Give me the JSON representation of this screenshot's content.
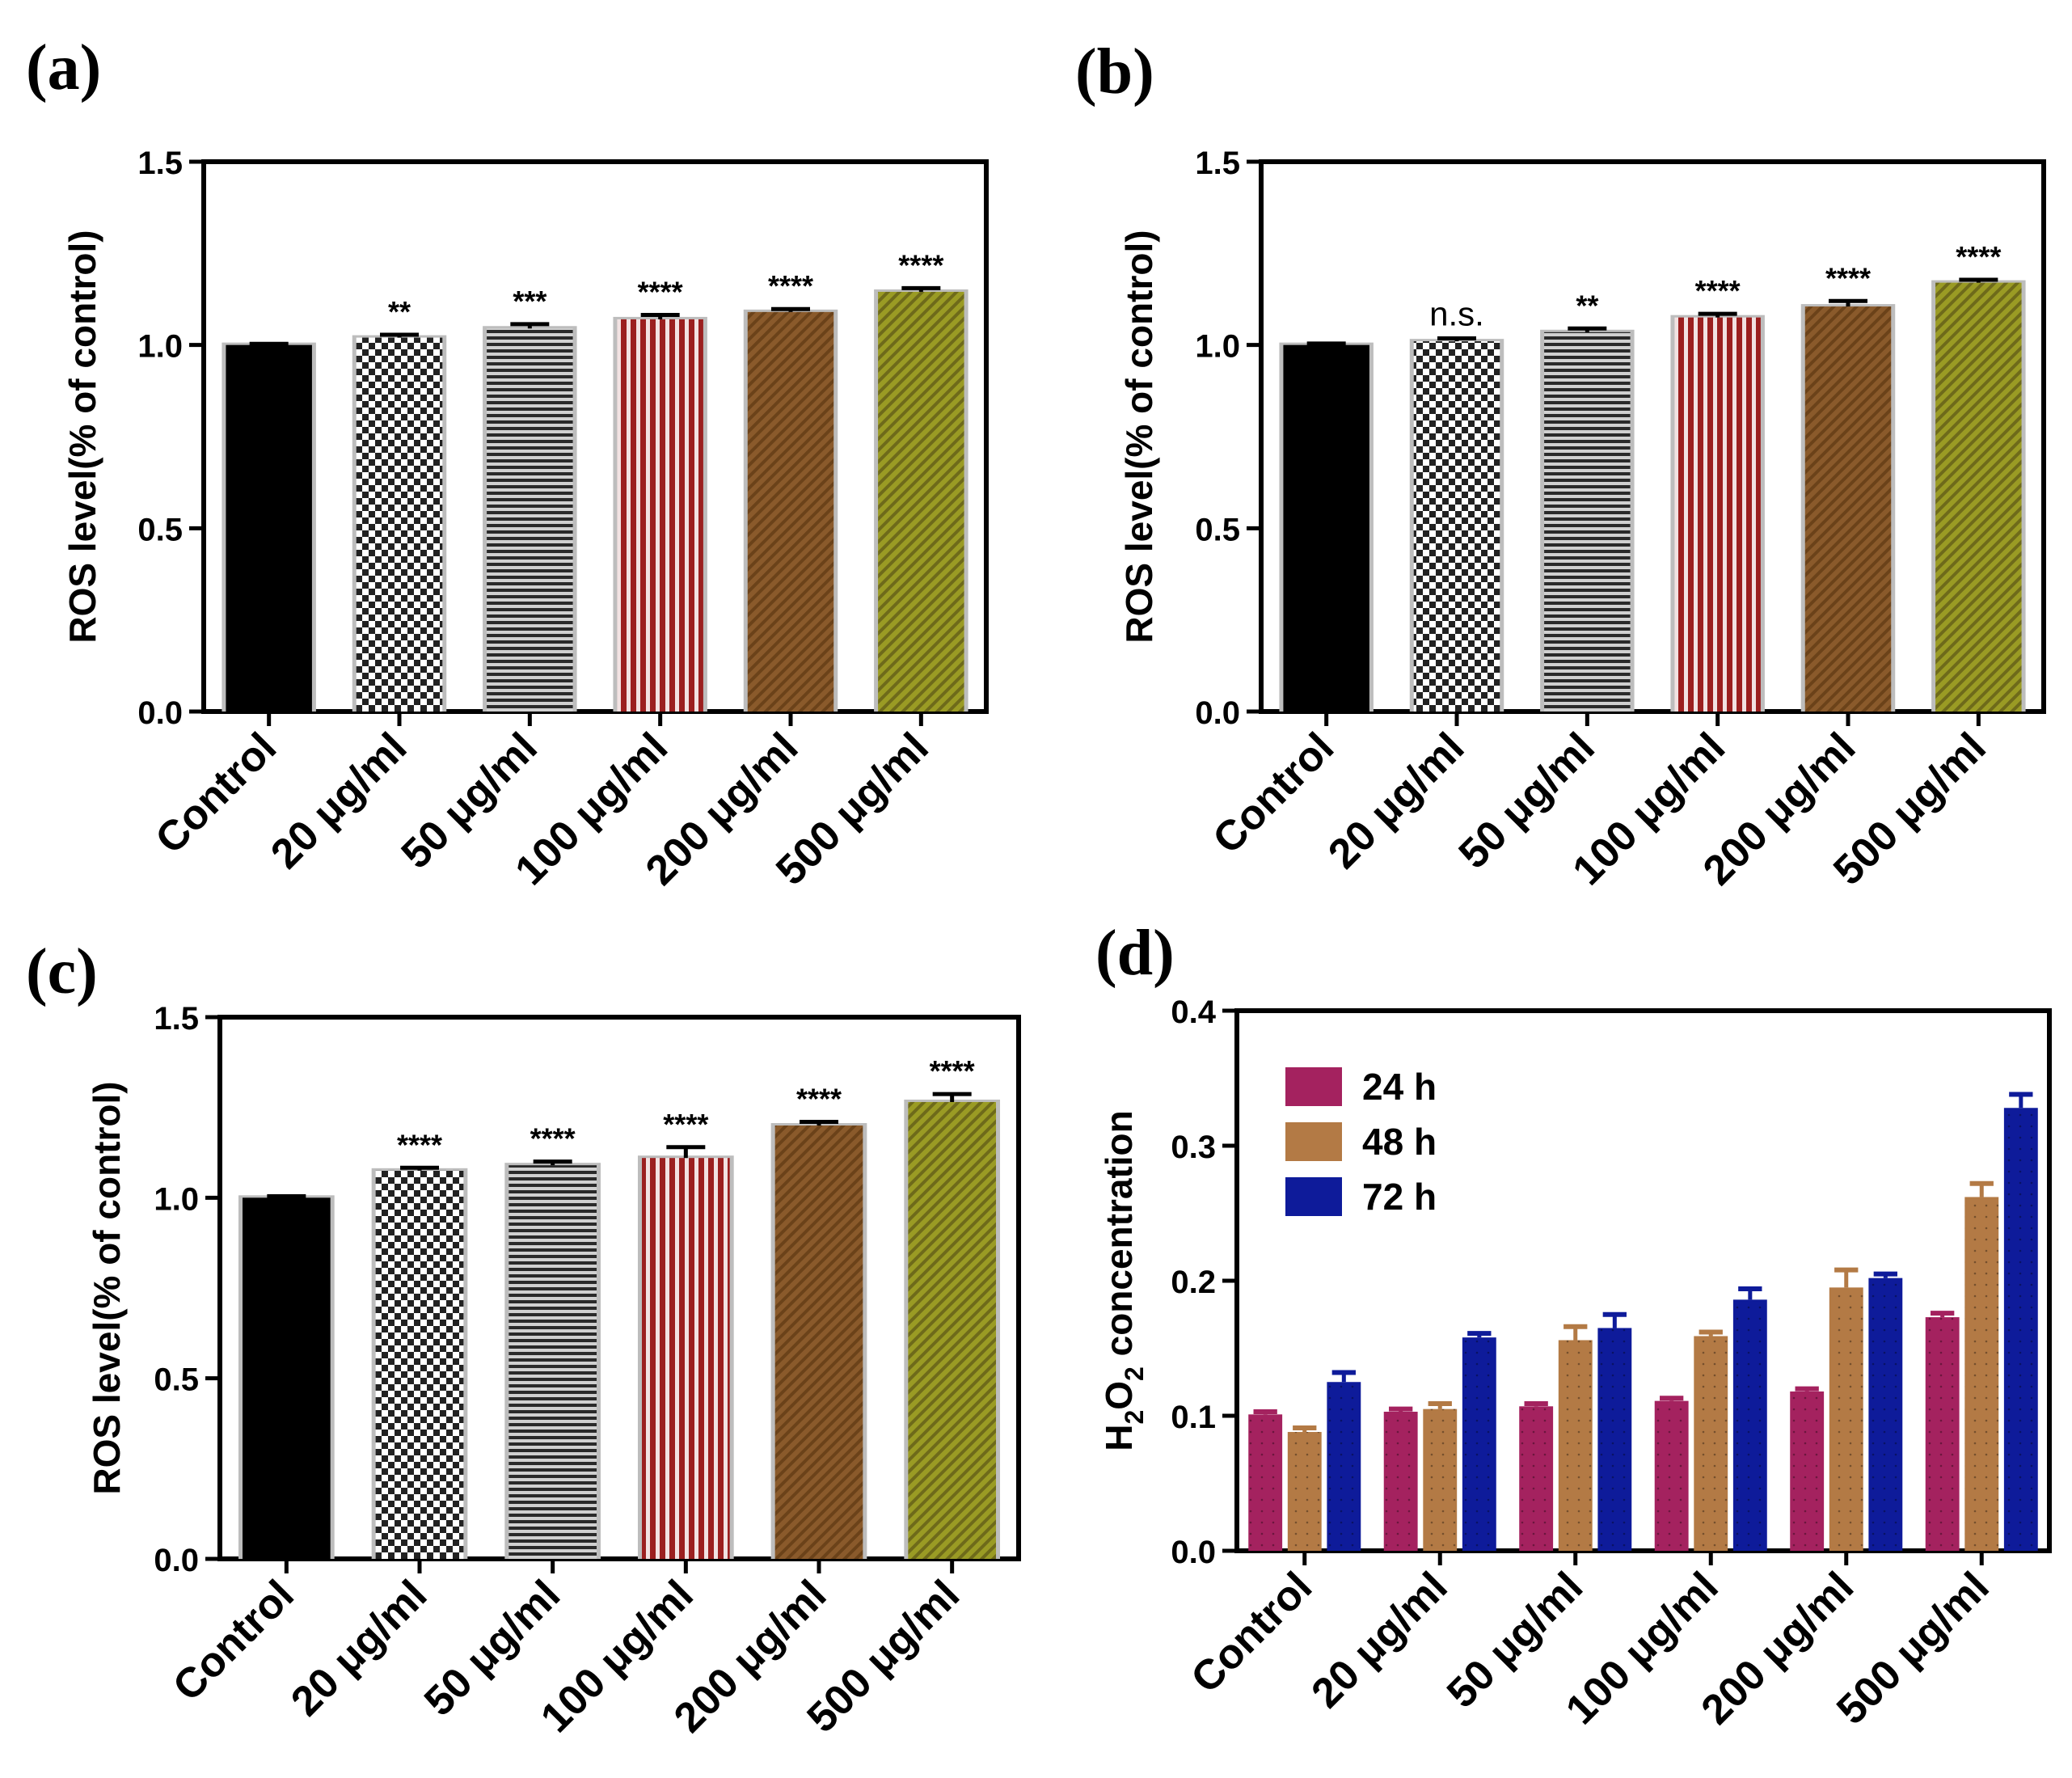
{
  "chart_data": [
    {
      "panel": "(a)",
      "type": "bar",
      "ylabel": "ROS level(% of control)",
      "categories": [
        "Control",
        "20 μg/ml",
        "50 μg/ml",
        "100 μg/ml",
        "200 μg/ml",
        "500 μg/ml"
      ],
      "values": [
        1.0,
        1.02,
        1.045,
        1.07,
        1.09,
        1.145
      ],
      "errors": [
        0.003,
        0.008,
        0.012,
        0.012,
        0.008,
        0.01
      ],
      "significance": [
        "",
        "**",
        "***",
        "****",
        "****",
        "****"
      ],
      "ylim": [
        0,
        1.5
      ],
      "yticks": [
        "0.0",
        "0.5",
        "1.0",
        "1.5"
      ],
      "patterns": [
        "solid-black",
        "checker",
        "horizontal-stripes",
        "red-vertical-stripes",
        "brown-diagonal",
        "olive-diagonal"
      ]
    },
    {
      "panel": "(b)",
      "type": "bar",
      "ylabel": "ROS level(% of control)",
      "categories": [
        "Control",
        "20 μg/ml",
        "50 μg/ml",
        "100 μg/ml",
        "200 μg/ml",
        "500 μg/ml"
      ],
      "values": [
        1.0,
        1.01,
        1.035,
        1.075,
        1.105,
        1.17
      ],
      "errors": [
        0.004,
        0.008,
        0.01,
        0.01,
        0.015,
        0.008
      ],
      "significance": [
        "",
        "n.s.",
        "**",
        "****",
        "****",
        "****"
      ],
      "ylim": [
        0,
        1.5
      ],
      "yticks": [
        "0.0",
        "0.5",
        "1.0",
        "1.5"
      ],
      "patterns": [
        "solid-black",
        "checker",
        "horizontal-stripes",
        "red-vertical-stripes",
        "brown-diagonal",
        "olive-diagonal"
      ]
    },
    {
      "panel": "(c)",
      "type": "bar",
      "ylabel": "ROS level(% of control)",
      "categories": [
        "Control",
        "20 μg/ml",
        "50 μg/ml",
        "100 μg/ml",
        "200 μg/ml",
        "500 μg/ml"
      ],
      "values": [
        1.0,
        1.075,
        1.09,
        1.11,
        1.2,
        1.265
      ],
      "errors": [
        0.004,
        0.008,
        0.01,
        0.03,
        0.01,
        0.022
      ],
      "significance": [
        "",
        "****",
        "****",
        "****",
        "****",
        "****"
      ],
      "ylim": [
        0,
        1.5
      ],
      "yticks": [
        "0.0",
        "0.5",
        "1.0",
        "1.5"
      ],
      "patterns": [
        "solid-black",
        "checker",
        "horizontal-stripes",
        "red-vertical-stripes",
        "brown-diagonal",
        "olive-diagonal"
      ]
    },
    {
      "panel": "(d)",
      "type": "bar",
      "ylabel_main": "H",
      "ylabel_sub1": "2",
      "ylabel_mid": "O",
      "ylabel_sub2": "2",
      "ylabel_rest": " concentration",
      "categories": [
        "Control",
        "20 μg/ml",
        "50 μg/ml",
        "100 μg/ml",
        "200 μg/ml",
        "500 μg/ml"
      ],
      "series": [
        {
          "name": "24 h",
          "color": "#a4225f",
          "values": [
            0.101,
            0.103,
            0.107,
            0.111,
            0.118,
            0.173
          ],
          "errors": [
            0.002,
            0.002,
            0.002,
            0.002,
            0.002,
            0.003
          ]
        },
        {
          "name": "48 h",
          "color": "#b37a45",
          "values": [
            0.088,
            0.105,
            0.156,
            0.159,
            0.195,
            0.262
          ],
          "errors": [
            0.003,
            0.004,
            0.01,
            0.003,
            0.013,
            0.01
          ]
        },
        {
          "name": "72 h",
          "color": "#0e1b9a",
          "values": [
            0.125,
            0.158,
            0.165,
            0.186,
            0.202,
            0.328
          ],
          "errors": [
            0.007,
            0.003,
            0.01,
            0.008,
            0.003,
            0.01
          ]
        }
      ],
      "ylim": [
        0,
        0.4
      ],
      "yticks": [
        "0.0",
        "0.1",
        "0.2",
        "0.3",
        "0.4"
      ],
      "legend_position": "top-left"
    }
  ]
}
